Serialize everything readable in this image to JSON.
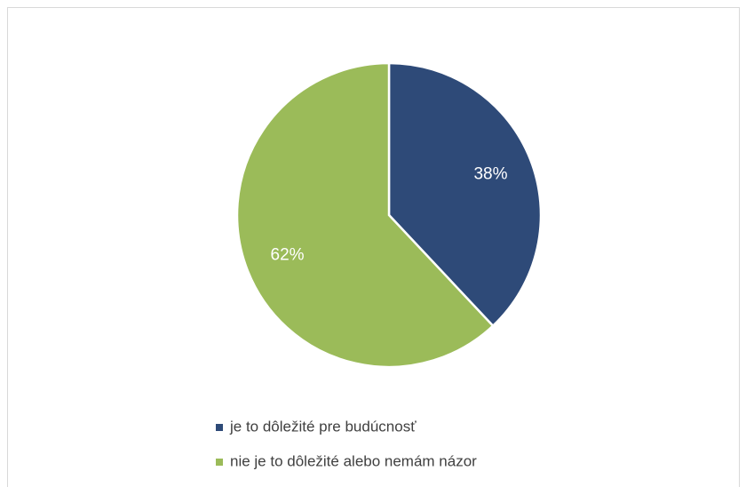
{
  "chart_data": {
    "type": "pie",
    "categories": [
      "je to dôležité pre budúcnosť",
      "nie je to dôležité alebo nemám názor"
    ],
    "values": [
      38,
      62
    ],
    "value_labels": [
      "38%",
      "62%"
    ],
    "colors": [
      "#2e4a78",
      "#9bbb59"
    ],
    "legend": "bottom"
  }
}
